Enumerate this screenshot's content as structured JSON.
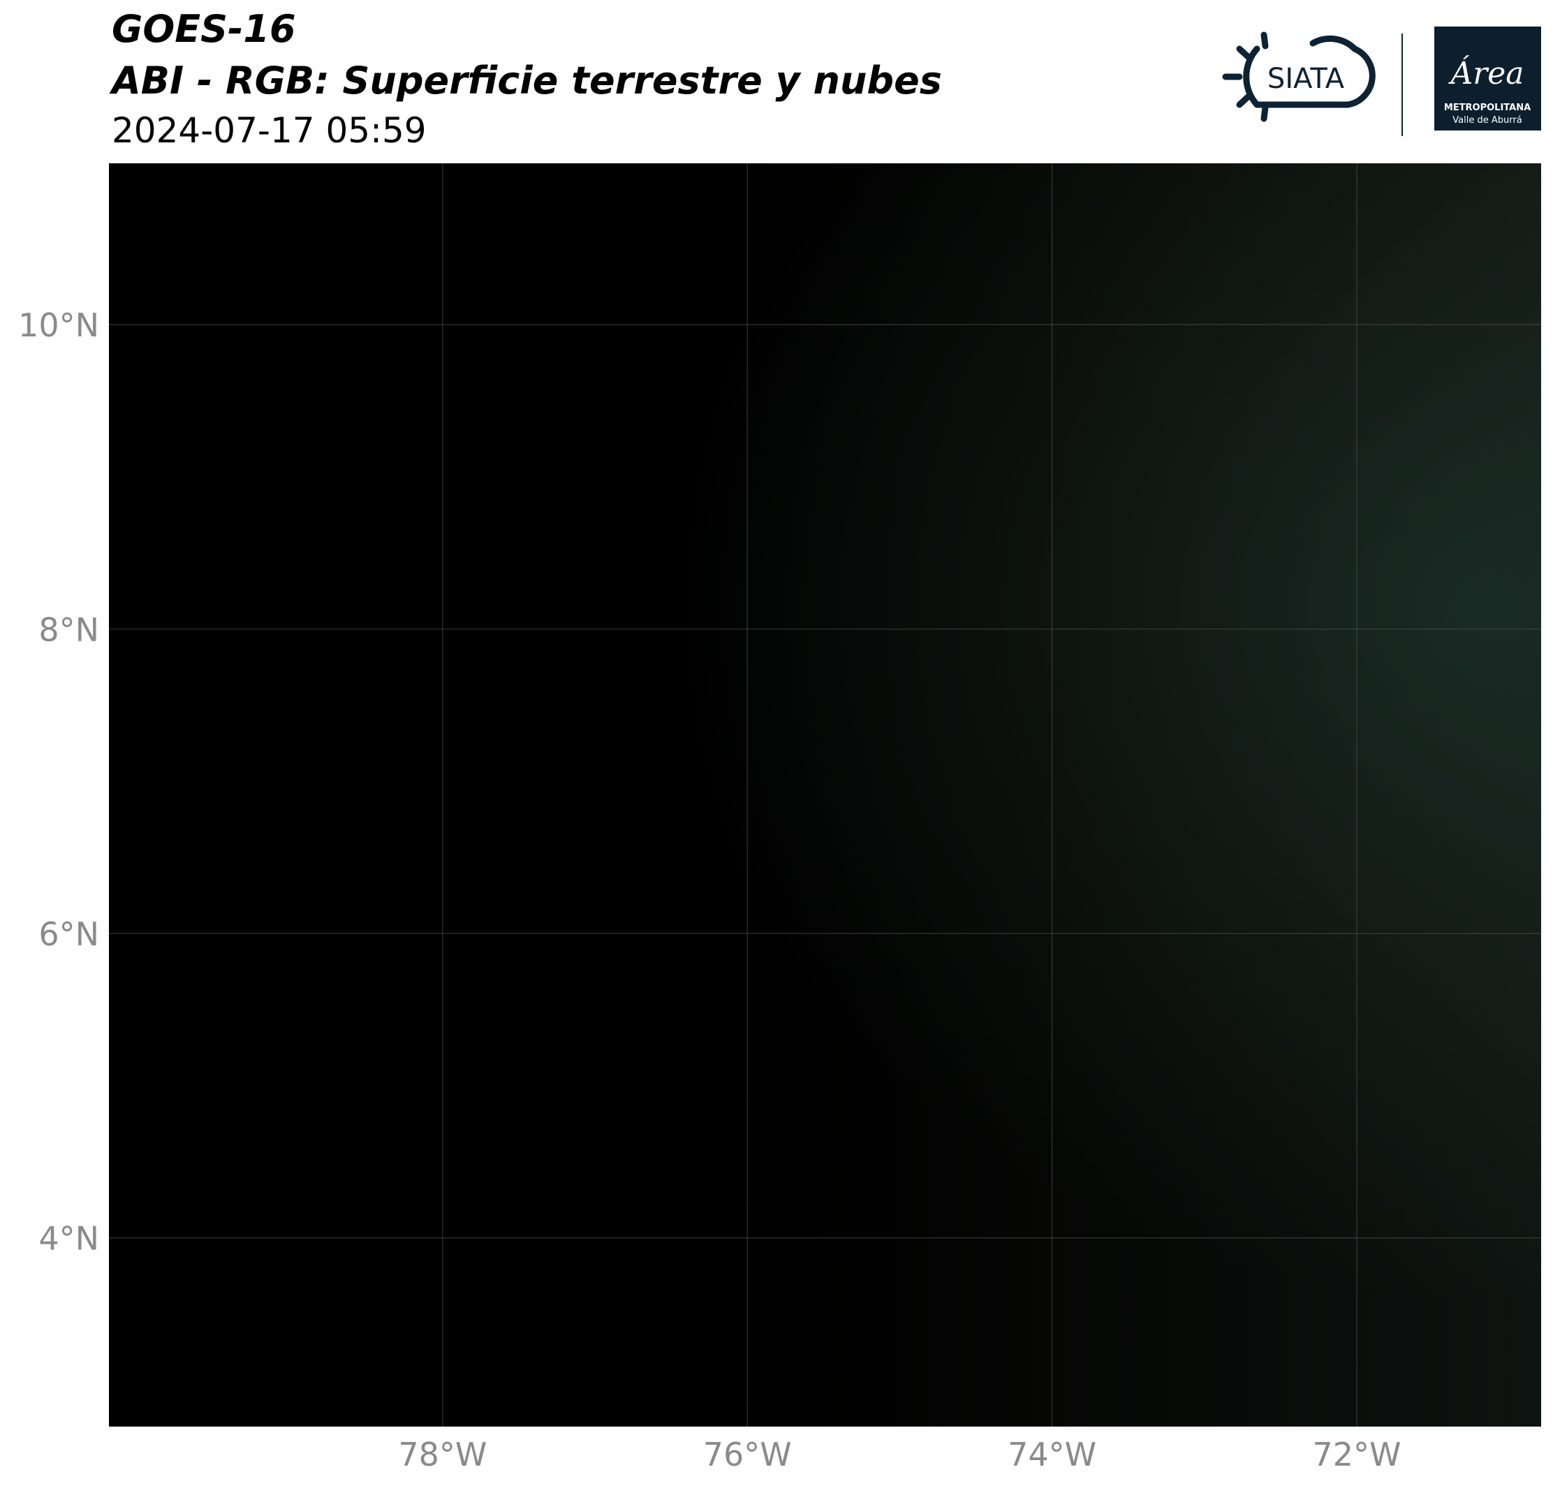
{
  "header": {
    "title": "GOES-16",
    "subtitle": "ABI - RGB: Superficie terrestre y nubes",
    "datetime": "2024-07-17 05:59"
  },
  "logos": {
    "siata": "SIATA",
    "area": "Área",
    "metropolitana": "METROPOLITANA",
    "valle": "Valle de Aburrá"
  },
  "map": {
    "xlim": [
      -80.19,
      -70.79
    ],
    "ylim": [
      2.76,
      11.06
    ],
    "xticks": [
      {
        "value": -78,
        "label": "78°W"
      },
      {
        "value": -76,
        "label": "76°W"
      },
      {
        "value": -74,
        "label": "74°W"
      },
      {
        "value": -72,
        "label": "72°W"
      }
    ],
    "yticks": [
      {
        "value": 10,
        "label": "10°N"
      },
      {
        "value": 8,
        "label": "8°N"
      },
      {
        "value": 6,
        "label": "6°N"
      },
      {
        "value": 4,
        "label": "4°N"
      }
    ]
  }
}
